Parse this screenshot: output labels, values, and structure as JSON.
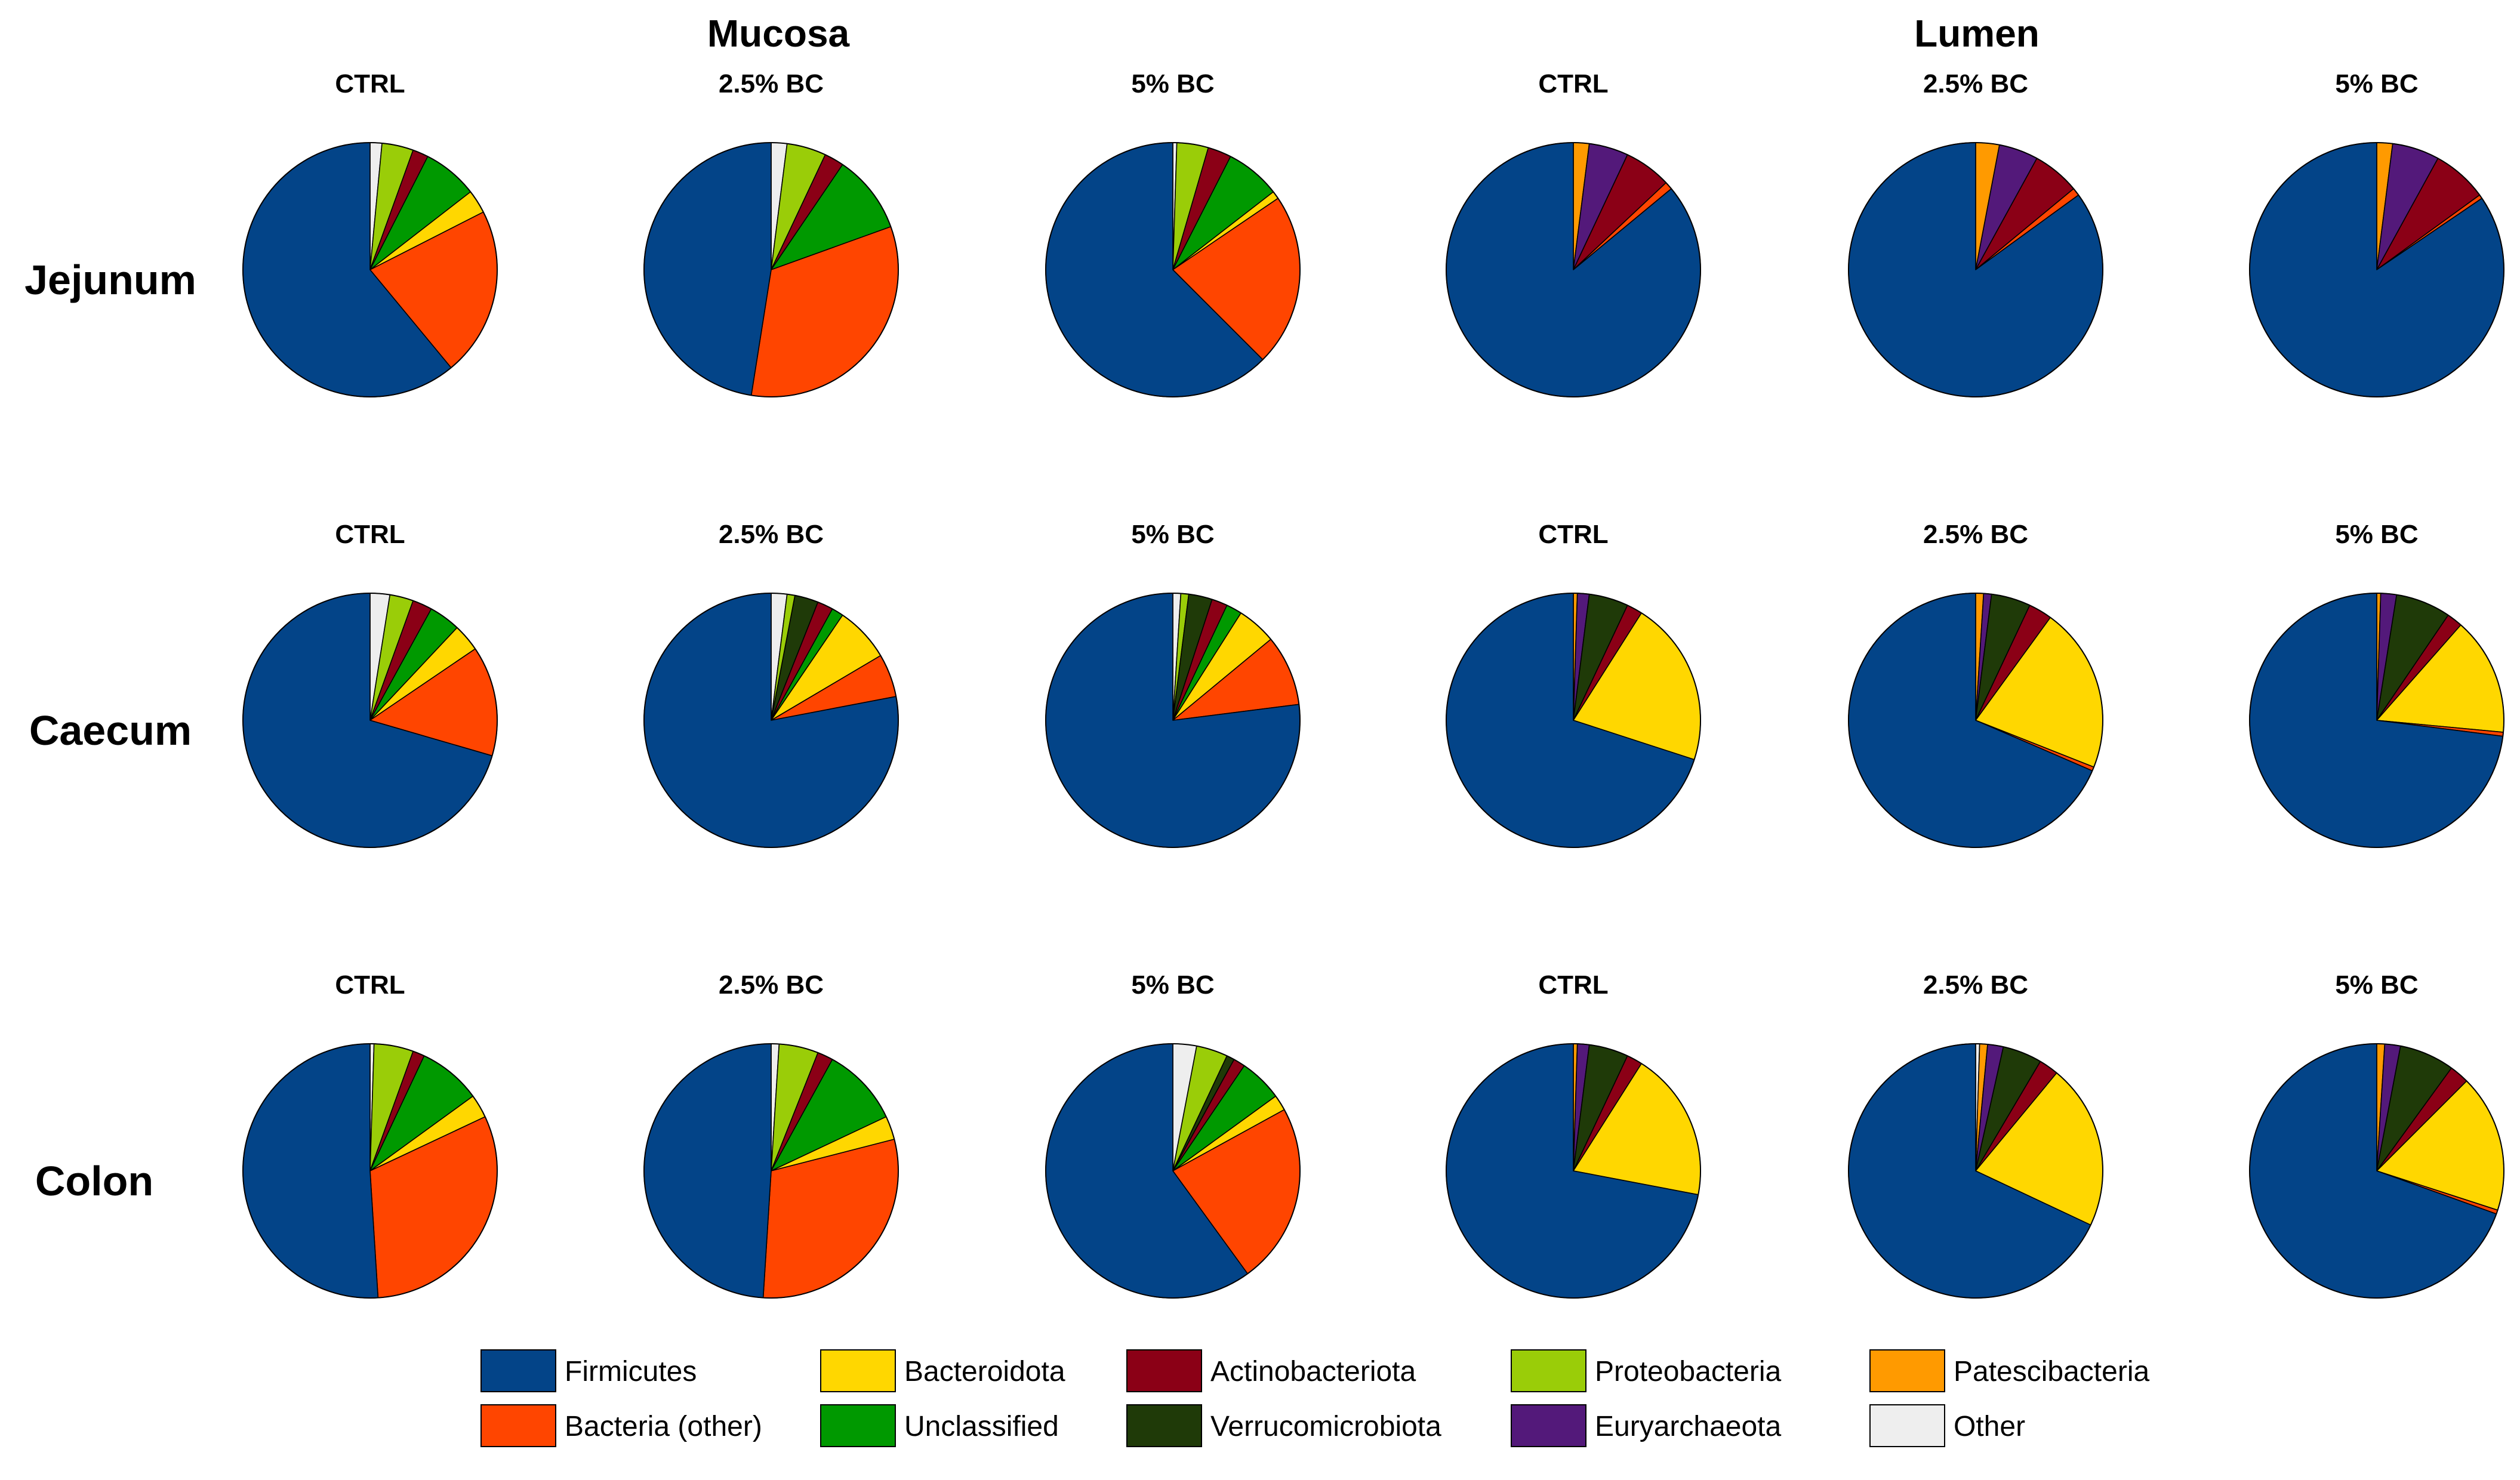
{
  "chart_data": {
    "type": "pie",
    "title": "",
    "groups": [
      "Mucosa",
      "Lumen"
    ],
    "columns": [
      {
        "group": "Mucosa",
        "label": "CTRL"
      },
      {
        "group": "Mucosa",
        "label": "2.5% BC"
      },
      {
        "group": "Mucosa",
        "label": "5% BC"
      },
      {
        "group": "Lumen",
        "label": "CTRL"
      },
      {
        "group": "Lumen",
        "label": "2.5% BC"
      },
      {
        "group": "Lumen",
        "label": "5% BC"
      }
    ],
    "rows": [
      "Jejunum",
      "Caecum",
      "Colon"
    ],
    "categories": [
      "Other",
      "Proteobacteria",
      "Actinobacteriota",
      "Unclassified",
      "Bacteroidota",
      "Bacteria (other)",
      "Firmicutes",
      "Patescibacteria",
      "Euryarchaeota",
      "Verrucomicrobiota"
    ],
    "legend": {
      "position": "bottom",
      "entries": [
        {
          "label": "Firmicutes",
          "color": "#034488"
        },
        {
          "label": "Bacteria (other)",
          "color": "#FF4500"
        },
        {
          "label": "Bacteroidota",
          "color": "#FFD700"
        },
        {
          "label": "Unclassified",
          "color": "#009900"
        },
        {
          "label": "Actinobacteriota",
          "color": "#8B0016"
        },
        {
          "label": "Verrucomicrobiota",
          "color": "#1F3A08"
        },
        {
          "label": "Proteobacteria",
          "color": "#9ACD08"
        },
        {
          "label": "Euryarchaeota",
          "color": "#53197A"
        },
        {
          "label": "Patescibacteria",
          "color": "#FF9A00"
        },
        {
          "label": "Other",
          "color": "#EEEEEE"
        }
      ]
    },
    "pies": [
      {
        "row": "Jejunum",
        "column": 0,
        "slices": [
          {
            "name": "Other",
            "value": 1.5
          },
          {
            "name": "Proteobacteria",
            "value": 4
          },
          {
            "name": "Actinobacteriota",
            "value": 2
          },
          {
            "name": "Unclassified",
            "value": 7
          },
          {
            "name": "Bacteroidota",
            "value": 3
          },
          {
            "name": "Bacteria (other)",
            "value": 21.5
          },
          {
            "name": "Firmicutes",
            "value": 61
          }
        ]
      },
      {
        "row": "Jejunum",
        "column": 1,
        "slices": [
          {
            "name": "Other",
            "value": 2
          },
          {
            "name": "Proteobacteria",
            "value": 5
          },
          {
            "name": "Actinobacteriota",
            "value": 2.5
          },
          {
            "name": "Unclassified",
            "value": 10
          },
          {
            "name": "Bacteria (other)",
            "value": 33
          },
          {
            "name": "Firmicutes",
            "value": 47.5
          }
        ]
      },
      {
        "row": "Jejunum",
        "column": 2,
        "slices": [
          {
            "name": "Other",
            "value": 0.5
          },
          {
            "name": "Proteobacteria",
            "value": 4
          },
          {
            "name": "Actinobacteriota",
            "value": 3
          },
          {
            "name": "Unclassified",
            "value": 7
          },
          {
            "name": "Bacteroidota",
            "value": 1
          },
          {
            "name": "Bacteria (other)",
            "value": 22
          },
          {
            "name": "Firmicutes",
            "value": 62.5
          }
        ]
      },
      {
        "row": "Jejunum",
        "column": 3,
        "slices": [
          {
            "name": "Patescibacteria",
            "value": 2
          },
          {
            "name": "Euryarchaeota",
            "value": 5
          },
          {
            "name": "Actinobacteriota",
            "value": 6
          },
          {
            "name": "Bacteria (other)",
            "value": 1
          },
          {
            "name": "Firmicutes",
            "value": 86
          }
        ]
      },
      {
        "row": "Jejunum",
        "column": 4,
        "slices": [
          {
            "name": "Patescibacteria",
            "value": 3
          },
          {
            "name": "Euryarchaeota",
            "value": 5
          },
          {
            "name": "Actinobacteriota",
            "value": 6
          },
          {
            "name": "Bacteria (other)",
            "value": 1
          },
          {
            "name": "Firmicutes",
            "value": 85
          }
        ]
      },
      {
        "row": "Jejunum",
        "column": 5,
        "slices": [
          {
            "name": "Patescibacteria",
            "value": 2
          },
          {
            "name": "Euryarchaeota",
            "value": 6
          },
          {
            "name": "Actinobacteriota",
            "value": 7
          },
          {
            "name": "Bacteria (other)",
            "value": 0.5
          },
          {
            "name": "Firmicutes",
            "value": 84.5
          }
        ]
      },
      {
        "row": "Caecum",
        "column": 0,
        "slices": [
          {
            "name": "Other",
            "value": 2.5
          },
          {
            "name": "Proteobacteria",
            "value": 3
          },
          {
            "name": "Actinobacteriota",
            "value": 2.5
          },
          {
            "name": "Unclassified",
            "value": 4
          },
          {
            "name": "Bacteroidota",
            "value": 3.5
          },
          {
            "name": "Bacteria (other)",
            "value": 14
          },
          {
            "name": "Firmicutes",
            "value": 70.5
          }
        ]
      },
      {
        "row": "Caecum",
        "column": 1,
        "slices": [
          {
            "name": "Other",
            "value": 2
          },
          {
            "name": "Proteobacteria",
            "value": 1
          },
          {
            "name": "Verrucomicrobiota",
            "value": 3
          },
          {
            "name": "Actinobacteriota",
            "value": 2
          },
          {
            "name": "Unclassified",
            "value": 1.5
          },
          {
            "name": "Bacteroidota",
            "value": 7
          },
          {
            "name": "Bacteria (other)",
            "value": 5.5
          },
          {
            "name": "Firmicutes",
            "value": 78
          }
        ]
      },
      {
        "row": "Caecum",
        "column": 2,
        "slices": [
          {
            "name": "Other",
            "value": 1
          },
          {
            "name": "Proteobacteria",
            "value": 1
          },
          {
            "name": "Verrucomicrobiota",
            "value": 3
          },
          {
            "name": "Actinobacteriota",
            "value": 2
          },
          {
            "name": "Unclassified",
            "value": 2
          },
          {
            "name": "Bacteroidota",
            "value": 5
          },
          {
            "name": "Bacteria (other)",
            "value": 9
          },
          {
            "name": "Firmicutes",
            "value": 77
          }
        ]
      },
      {
        "row": "Caecum",
        "column": 3,
        "slices": [
          {
            "name": "Patescibacteria",
            "value": 0.5
          },
          {
            "name": "Euryarchaeota",
            "value": 1.5
          },
          {
            "name": "Verrucomicrobiota",
            "value": 5
          },
          {
            "name": "Actinobacteriota",
            "value": 2
          },
          {
            "name": "Bacteroidota",
            "value": 21
          },
          {
            "name": "Firmicutes",
            "value": 70
          }
        ]
      },
      {
        "row": "Caecum",
        "column": 4,
        "slices": [
          {
            "name": "Patescibacteria",
            "value": 1
          },
          {
            "name": "Euryarchaeota",
            "value": 1
          },
          {
            "name": "Verrucomicrobiota",
            "value": 5
          },
          {
            "name": "Actinobacteriota",
            "value": 3
          },
          {
            "name": "Bacteroidota",
            "value": 21
          },
          {
            "name": "Bacteria (other)",
            "value": 0.5
          },
          {
            "name": "Firmicutes",
            "value": 68.5
          }
        ]
      },
      {
        "row": "Caecum",
        "column": 5,
        "slices": [
          {
            "name": "Patescibacteria",
            "value": 0.5
          },
          {
            "name": "Euryarchaeota",
            "value": 2
          },
          {
            "name": "Verrucomicrobiota",
            "value": 7
          },
          {
            "name": "Actinobacteriota",
            "value": 2
          },
          {
            "name": "Bacteroidota",
            "value": 15
          },
          {
            "name": "Bacteria (other)",
            "value": 0.5
          },
          {
            "name": "Firmicutes",
            "value": 73
          }
        ]
      },
      {
        "row": "Colon",
        "column": 0,
        "slices": [
          {
            "name": "Other",
            "value": 0.5
          },
          {
            "name": "Proteobacteria",
            "value": 5
          },
          {
            "name": "Actinobacteriota",
            "value": 1.5
          },
          {
            "name": "Unclassified",
            "value": 8
          },
          {
            "name": "Bacteroidota",
            "value": 3
          },
          {
            "name": "Bacteria (other)",
            "value": 31
          },
          {
            "name": "Firmicutes",
            "value": 51
          }
        ]
      },
      {
        "row": "Colon",
        "column": 1,
        "slices": [
          {
            "name": "Other",
            "value": 1
          },
          {
            "name": "Proteobacteria",
            "value": 5
          },
          {
            "name": "Actinobacteriota",
            "value": 2
          },
          {
            "name": "Unclassified",
            "value": 10
          },
          {
            "name": "Bacteroidota",
            "value": 3
          },
          {
            "name": "Bacteria (other)",
            "value": 30
          },
          {
            "name": "Firmicutes",
            "value": 49
          }
        ]
      },
      {
        "row": "Colon",
        "column": 2,
        "slices": [
          {
            "name": "Other",
            "value": 3
          },
          {
            "name": "Proteobacteria",
            "value": 4
          },
          {
            "name": "Verrucomicrobiota",
            "value": 1
          },
          {
            "name": "Actinobacteriota",
            "value": 1.5
          },
          {
            "name": "Unclassified",
            "value": 5.5
          },
          {
            "name": "Bacteroidota",
            "value": 2
          },
          {
            "name": "Bacteria (other)",
            "value": 23
          },
          {
            "name": "Firmicutes",
            "value": 60
          }
        ]
      },
      {
        "row": "Colon",
        "column": 3,
        "slices": [
          {
            "name": "Patescibacteria",
            "value": 0.5
          },
          {
            "name": "Euryarchaeota",
            "value": 1.5
          },
          {
            "name": "Verrucomicrobiota",
            "value": 5
          },
          {
            "name": "Actinobacteriota",
            "value": 2
          },
          {
            "name": "Bacteroidota",
            "value": 19
          },
          {
            "name": "Firmicutes",
            "value": 72
          }
        ]
      },
      {
        "row": "Colon",
        "column": 4,
        "slices": [
          {
            "name": "Other",
            "value": 0.5
          },
          {
            "name": "Patescibacteria",
            "value": 1
          },
          {
            "name": "Euryarchaeota",
            "value": 2
          },
          {
            "name": "Verrucomicrobiota",
            "value": 5
          },
          {
            "name": "Actinobacteriota",
            "value": 2.5
          },
          {
            "name": "Bacteroidota",
            "value": 21
          },
          {
            "name": "Firmicutes",
            "value": 68
          }
        ]
      },
      {
        "row": "Colon",
        "column": 5,
        "slices": [
          {
            "name": "Patescibacteria",
            "value": 1
          },
          {
            "name": "Euryarchaeota",
            "value": 2
          },
          {
            "name": "Verrucomicrobiota",
            "value": 7
          },
          {
            "name": "Actinobacteriota",
            "value": 2.5
          },
          {
            "name": "Bacteroidota",
            "value": 17.5
          },
          {
            "name": "Bacteria (other)",
            "value": 0.5
          },
          {
            "name": "Firmicutes",
            "value": 69.5
          }
        ]
      }
    ]
  }
}
